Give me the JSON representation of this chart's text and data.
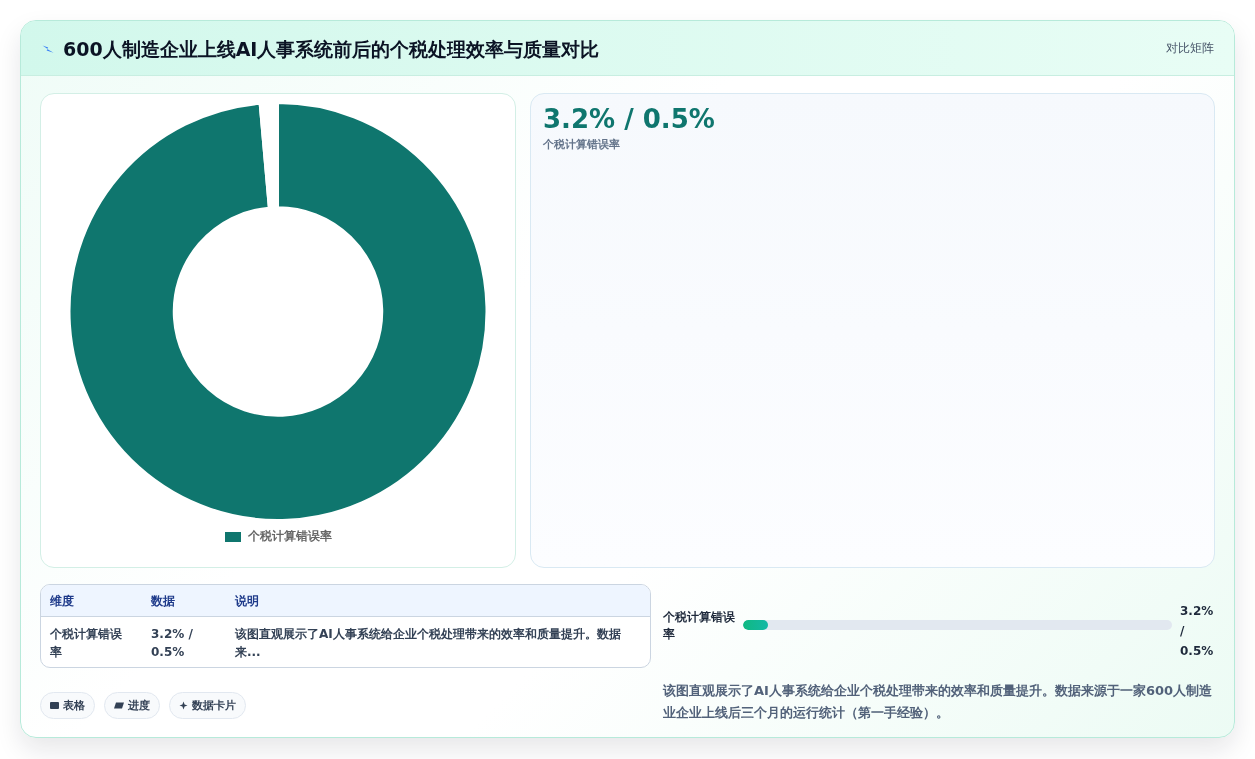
{
  "chart_data": [
    {
      "type": "donut",
      "title": "600人制造企业上线AI人事系统前后的个税处理效率与质量对比",
      "categories": [
        "个税计算错误率",
        null
      ],
      "values": [
        98.6,
        1.4
      ],
      "colors": [
        "#0f766e",
        "#ffffff"
      ],
      "legend": "bottom"
    },
    {
      "type": "other",
      "title": "3.2% / 0.5%",
      "subtitle": "个税计算错误率",
      "annotations": [
        "对比矩阵",
        "维度",
        "数据",
        "说明",
        "个税计算错误率",
        "3.2% / 0.5%",
        "该图直观展示了AI人事系统给企业个税处理带来的效率和质量提升。数据来...",
        "个税计算错误率",
        "3.2% / 0.5%",
        "表格",
        "进度",
        "数据卡片",
        "该图直观展示了AI人事系统给企业个税处理带来的效率和质量提升。数据来源于一家600人制造业企业上线后三个月的运行统计（第一手经验）。"
      ]
    }
  ]
}
